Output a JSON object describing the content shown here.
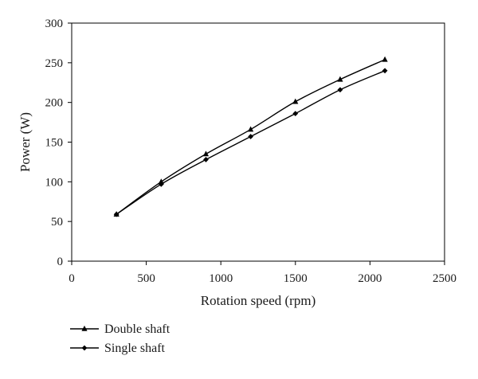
{
  "chart_data": {
    "type": "line",
    "xlabel": "Rotation speed (rpm)",
    "ylabel": "Power (W)",
    "xlim": [
      0,
      2500
    ],
    "ylim": [
      0,
      300
    ],
    "xticks": [
      0,
      500,
      1000,
      1500,
      2000,
      2500
    ],
    "yticks": [
      0,
      50,
      100,
      150,
      200,
      250,
      300
    ],
    "grid": false,
    "legend_position": "bottom-left",
    "x": [
      300,
      600,
      900,
      1200,
      1500,
      1800,
      2100
    ],
    "series": [
      {
        "name": "Double shaft",
        "marker": "triangle",
        "color": "#000000",
        "values": [
          59,
          100,
          135,
          166,
          201,
          229,
          254
        ]
      },
      {
        "name": "Single shaft",
        "marker": "diamond",
        "color": "#000000",
        "values": [
          59,
          97,
          128,
          157,
          186,
          216,
          240
        ]
      }
    ]
  }
}
